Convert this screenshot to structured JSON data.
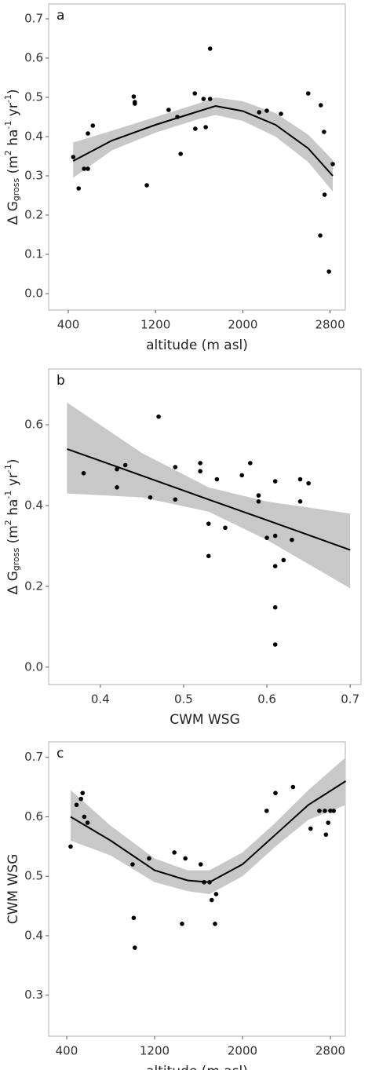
{
  "chart_data": [
    {
      "type": "scatter",
      "label": "a",
      "xlabel": "altitude (m asl)",
      "ylabel": [
        "Δ G",
        "gross",
        " (m",
        "2",
        " ha",
        "-1",
        " yr",
        "-1",
        ")"
      ],
      "xlim": [
        220,
        2940
      ],
      "ylim": [
        -0.042,
        0.738
      ],
      "xticks": [
        400,
        1200,
        2000,
        2800
      ],
      "yticks": [
        {
          "value": 0,
          "label": "0.0"
        },
        0.1,
        0.2,
        0.3,
        0.4,
        0.5,
        0.6,
        0.7
      ],
      "points": {
        "color": "#000000",
        "x": [
          445,
          495,
          545,
          580,
          580,
          625,
          1000,
          1010,
          1010,
          1120,
          1320,
          1400,
          1430,
          1560,
          1565,
          1640,
          1660,
          1700,
          1700,
          2150,
          2220,
          2350,
          2600,
          2715,
          2745,
          2750,
          2710,
          2790,
          2825
        ],
        "values": [
          0.348,
          0.268,
          0.318,
          0.318,
          0.408,
          0.428,
          0.502,
          0.488,
          0.484,
          0.276,
          0.468,
          0.45,
          0.356,
          0.51,
          0.42,
          0.496,
          0.424,
          0.496,
          0.624,
          0.462,
          0.466,
          0.458,
          0.51,
          0.48,
          0.412,
          0.252,
          0.148,
          0.056,
          0.33
        ]
      },
      "fit": {
        "color": "#000000",
        "band_color": "#c8c8c8",
        "x": [
          445,
          800,
          1200,
          1600,
          1750,
          2000,
          2300,
          2600,
          2825
        ],
        "values": [
          0.338,
          0.39,
          0.43,
          0.465,
          0.478,
          0.465,
          0.43,
          0.37,
          0.3
        ],
        "lower": [
          0.295,
          0.365,
          0.41,
          0.445,
          0.455,
          0.44,
          0.4,
          0.335,
          0.26
        ],
        "upper": [
          0.385,
          0.415,
          0.45,
          0.485,
          0.5,
          0.49,
          0.46,
          0.405,
          0.34
        ]
      }
    },
    {
      "type": "scatter",
      "label": "b",
      "xlabel": "CWM WSG",
      "ylabel": [
        "Δ G",
        "gross",
        " (m",
        "2",
        " ha",
        "-1",
        " yr",
        "-1",
        ")"
      ],
      "xlim": [
        0.338,
        0.713
      ],
      "ylim": [
        -0.043,
        0.738
      ],
      "xticks": [
        0.4,
        0.5,
        0.6,
        0.7
      ],
      "yticks": [
        {
          "value": 0,
          "label": "0.0"
        },
        0.2,
        0.4,
        0.6
      ],
      "points": {
        "color": "#000000",
        "x": [
          0.38,
          0.42,
          0.42,
          0.43,
          0.46,
          0.47,
          0.49,
          0.49,
          0.52,
          0.52,
          0.53,
          0.53,
          0.54,
          0.55,
          0.57,
          0.58,
          0.59,
          0.59,
          0.6,
          0.61,
          0.61,
          0.61,
          0.61,
          0.61,
          0.62,
          0.63,
          0.64,
          0.64,
          0.65
        ],
        "values": [
          0.48,
          0.49,
          0.445,
          0.5,
          0.42,
          0.62,
          0.495,
          0.415,
          0.505,
          0.485,
          0.355,
          0.275,
          0.465,
          0.345,
          0.475,
          0.505,
          0.425,
          0.41,
          0.32,
          0.46,
          0.325,
          0.25,
          0.148,
          0.056,
          0.265,
          0.315,
          0.465,
          0.41,
          0.455
        ]
      },
      "fit": {
        "color": "#000000",
        "band_color": "#c8c8c8",
        "x": [
          0.36,
          0.45,
          0.53,
          0.6,
          0.7
        ],
        "values": [
          0.54,
          0.474,
          0.415,
          0.364,
          0.29
        ],
        "lower": [
          0.43,
          0.42,
          0.385,
          0.315,
          0.195
        ],
        "upper": [
          0.655,
          0.53,
          0.445,
          0.41,
          0.38
        ]
      }
    },
    {
      "type": "scatter",
      "label": "c",
      "xlabel": "altitude (m asl)",
      "ylabel": [
        "CWM WSG"
      ],
      "xlim": [
        236,
        2936
      ],
      "ylim": [
        0.231,
        0.726
      ],
      "xticks": [
        400,
        1200,
        2000,
        2800
      ],
      "yticks": [
        0.3,
        0.4,
        0.5,
        0.6,
        0.7
      ],
      "points": {
        "color": "#000000",
        "x": [
          436,
          490,
          530,
          545,
          560,
          590,
          1000,
          1010,
          1020,
          1150,
          1380,
          1450,
          1480,
          1620,
          1650,
          1700,
          1720,
          1750,
          1760,
          2220,
          2300,
          2460,
          2620,
          2700,
          2750,
          2760,
          2780,
          2800,
          2830
        ],
        "values": [
          0.55,
          0.62,
          0.63,
          0.64,
          0.6,
          0.59,
          0.52,
          0.43,
          0.38,
          0.53,
          0.54,
          0.42,
          0.53,
          0.52,
          0.49,
          0.49,
          0.46,
          0.42,
          0.47,
          0.61,
          0.64,
          0.65,
          0.58,
          0.61,
          0.61,
          0.57,
          0.59,
          0.61,
          0.61
        ]
      },
      "fit": {
        "color": "#000000",
        "band_color": "#c8c8c8",
        "x": [
          436,
          800,
          1200,
          1500,
          1700,
          2000,
          2300,
          2600,
          2940
        ],
        "values": [
          0.6,
          0.56,
          0.51,
          0.493,
          0.49,
          0.52,
          0.57,
          0.62,
          0.66
        ],
        "lower": [
          0.56,
          0.535,
          0.49,
          0.475,
          0.47,
          0.5,
          0.55,
          0.595,
          0.62
        ],
        "upper": [
          0.645,
          0.585,
          0.53,
          0.51,
          0.51,
          0.54,
          0.59,
          0.645,
          0.7
        ]
      }
    }
  ]
}
